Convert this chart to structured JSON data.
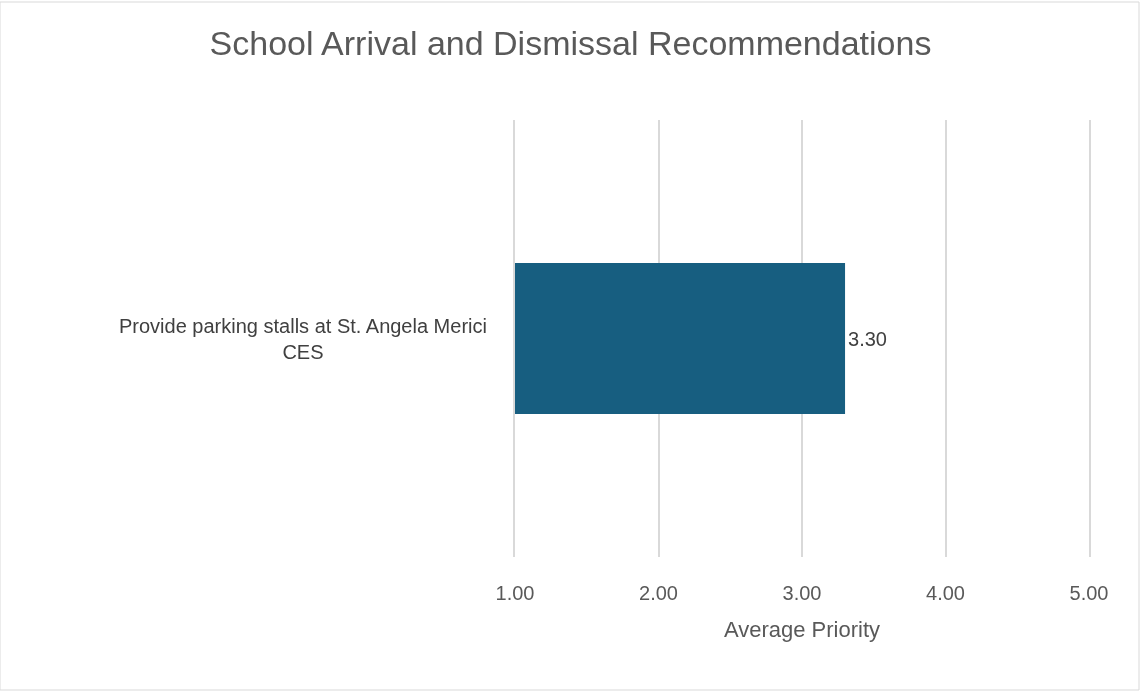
{
  "chart_data": {
    "type": "bar",
    "orientation": "horizontal",
    "title": "School Arrival and Dismissal Recommendations",
    "xlabel": "Average Priority",
    "categories": [
      "Provide parking stalls at St. Angela Merici CES"
    ],
    "values": [
      3.3
    ],
    "value_labels": [
      "3.30"
    ],
    "color": "#175e80",
    "xlim": [
      1,
      5
    ],
    "xticks": [
      {
        "value": 1,
        "label": "1.00"
      },
      {
        "value": 2,
        "label": "2.00"
      },
      {
        "value": 3,
        "label": "3.00"
      },
      {
        "value": 4,
        "label": "4.00"
      },
      {
        "value": 5,
        "label": "5.00"
      }
    ],
    "grid": "x"
  }
}
